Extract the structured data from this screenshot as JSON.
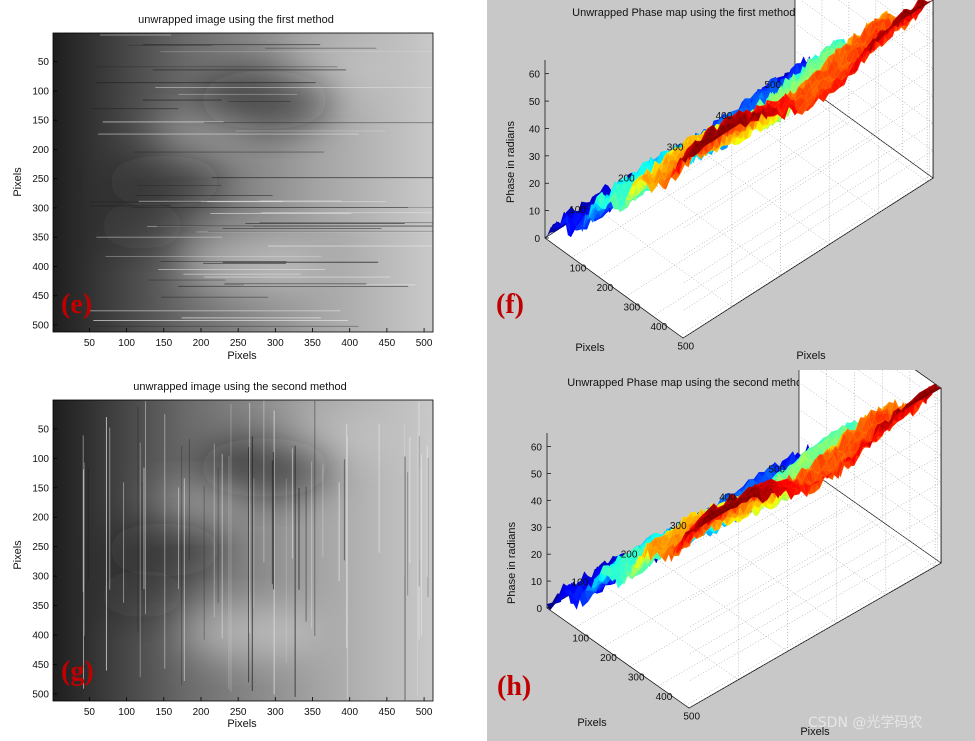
{
  "watermark": "CSDN @光学码农",
  "chart_data": [
    {
      "id": "e",
      "type": "heatmap",
      "panel_label": "(e)",
      "title": "unwrapped image using the first method",
      "xlabel": "Pixels",
      "ylabel": "Pixels",
      "xticks": [
        50,
        100,
        150,
        200,
        250,
        300,
        350,
        400,
        450,
        500
      ],
      "yticks": [
        50,
        100,
        150,
        200,
        250,
        300,
        350,
        400,
        450,
        500
      ],
      "xlim": [
        1,
        512
      ],
      "ylim": [
        1,
        512
      ],
      "colormap": "gray",
      "artifacts": "horizontal streaks"
    },
    {
      "id": "f",
      "type": "surface",
      "panel_label": "(f)",
      "title": "Unwrapped Phase map using the first method displayed as a surface",
      "xlabel": "Pixels",
      "ylabel": "Pixels",
      "zlabel": "Phase in radians",
      "xticks": [
        100,
        200,
        300,
        400,
        500
      ],
      "yticks": [
        100,
        200,
        300,
        400,
        500
      ],
      "zticks": [
        0,
        10,
        20,
        30,
        40,
        50,
        60
      ],
      "zlim": [
        0,
        65
      ],
      "colormap": "jet"
    },
    {
      "id": "g",
      "type": "heatmap",
      "panel_label": "(g)",
      "title": "unwrapped image using the second method",
      "xlabel": "Pixels",
      "ylabel": "Pixels",
      "xticks": [
        50,
        100,
        150,
        200,
        250,
        300,
        350,
        400,
        450,
        500
      ],
      "yticks": [
        50,
        100,
        150,
        200,
        250,
        300,
        350,
        400,
        450,
        500
      ],
      "xlim": [
        1,
        512
      ],
      "ylim": [
        1,
        512
      ],
      "colormap": "gray",
      "artifacts": "vertical streaks"
    },
    {
      "id": "h",
      "type": "surface",
      "panel_label": "(h)",
      "title": "Unwrapped Phase map using the second method displayed as a surface",
      "xlabel": "Pixels",
      "ylabel": "Pixels",
      "zlabel": "Phase in radians",
      "xticks": [
        100,
        200,
        300,
        400,
        500
      ],
      "yticks": [
        100,
        200,
        300,
        400,
        500
      ],
      "zticks": [
        0,
        10,
        20,
        30,
        40,
        50,
        60
      ],
      "zlim": [
        0,
        65
      ],
      "colormap": "jet"
    }
  ]
}
